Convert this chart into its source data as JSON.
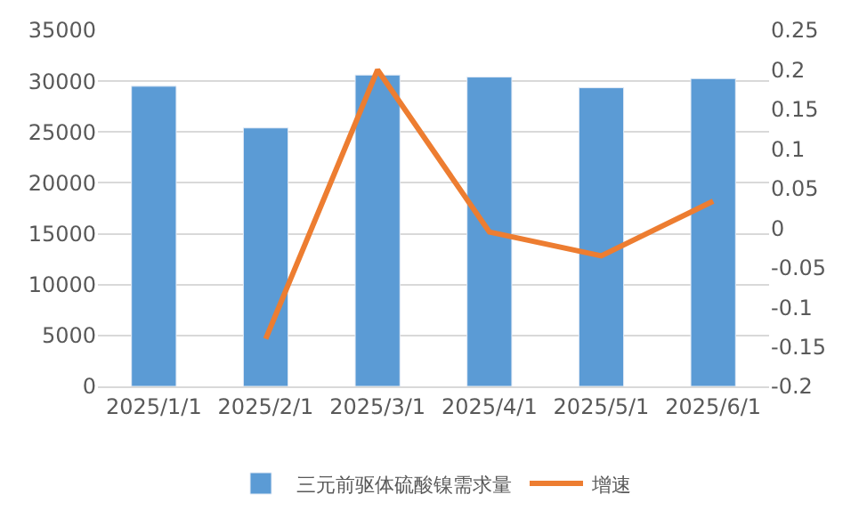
{
  "chart_data": {
    "type": "bar",
    "categories": [
      "2025/1/1",
      "2025/2/1",
      "2025/3/1",
      "2025/4/1",
      "2025/5/1",
      "2025/6/1"
    ],
    "series": [
      {
        "name": "三元前驱体硫酸镍需求量",
        "color": "#5b9bd5",
        "values": [
          29500,
          25400,
          30600,
          30400,
          29350,
          30250
        ]
      },
      {
        "name": "增速",
        "type": "line",
        "axis": "y2",
        "color": "#ed7d31",
        "values": [
          null,
          -0.14,
          0.2,
          -0.005,
          -0.035,
          0.034
        ]
      }
    ],
    "ylim": [
      0,
      35000
    ],
    "yticks": [
      0,
      5000,
      10000,
      15000,
      20000,
      25000,
      30000,
      35000
    ],
    "y2lim": [
      -0.2,
      0.25
    ],
    "y2ticks": [
      -0.2,
      -0.15,
      -0.1,
      -0.05,
      0,
      0.05,
      0.1,
      0.15,
      0.2,
      0.25
    ],
    "grid": "y",
    "legend": "bottom",
    "marker": "none",
    "line_style": "solid"
  }
}
